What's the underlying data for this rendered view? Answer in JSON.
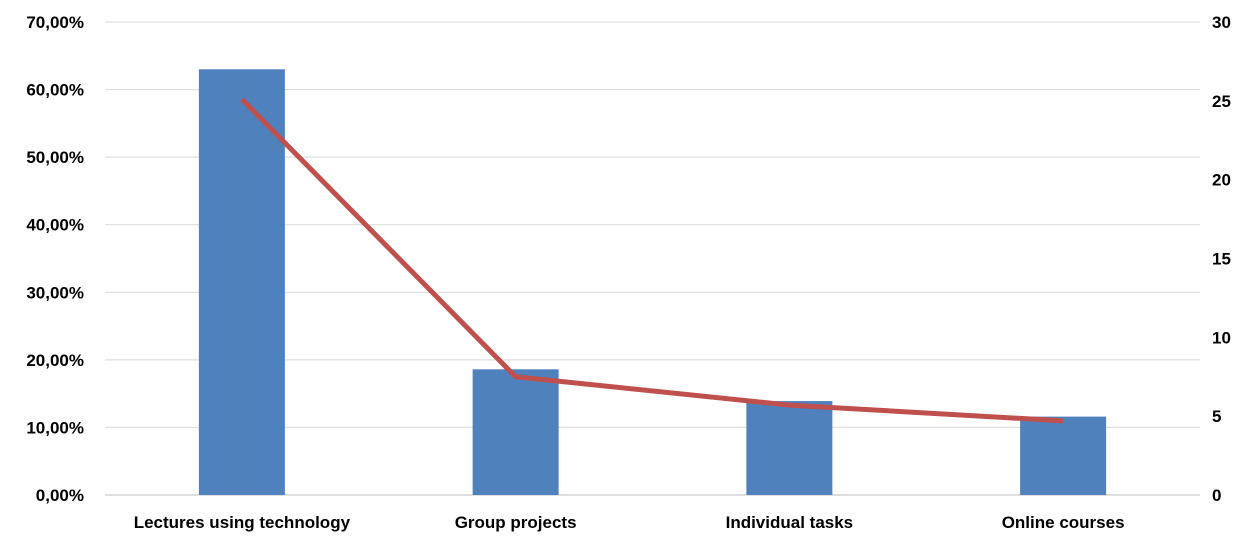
{
  "chart_data": {
    "type": "bar",
    "title": "",
    "xlabel": "",
    "ylabel": "",
    "y2label": "",
    "categories": [
      "Lectures using technology",
      "Group projects",
      "Individual tasks",
      "Online courses"
    ],
    "series": [
      {
        "type": "bar",
        "axis": "left",
        "values": [
          63.0,
          18.6,
          13.9,
          11.6
        ],
        "unit": "%",
        "color": "#4F81BD"
      },
      {
        "type": "line",
        "axis": "right",
        "values": [
          25.1,
          7.5,
          5.7,
          4.7
        ],
        "color": "#C0504D"
      }
    ],
    "ylim": [
      0,
      70
    ],
    "y2lim": [
      0,
      30
    ],
    "y_ticks": [
      "0,00%",
      "10,00%",
      "20,00%",
      "30,00%",
      "40,00%",
      "50,00%",
      "60,00%",
      "70,00%"
    ],
    "y2_ticks": [
      "0",
      "5",
      "10",
      "15",
      "20",
      "25",
      "30"
    ],
    "grid": true,
    "legend": "none"
  }
}
